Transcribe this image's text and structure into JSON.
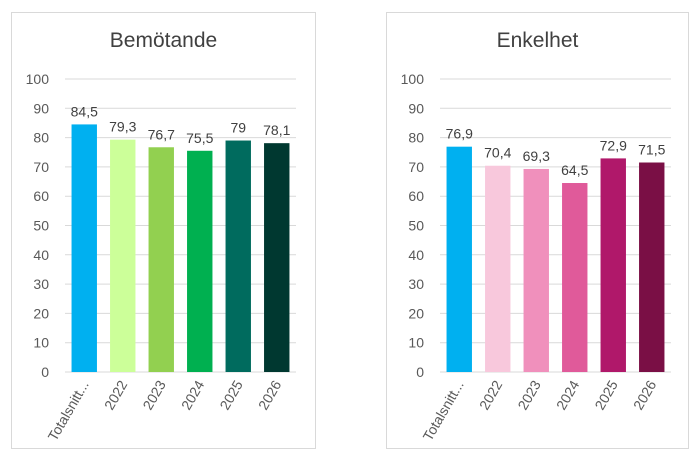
{
  "chart_data": [
    {
      "type": "bar",
      "title": "Bemötande",
      "categories": [
        "Totalsnitt...",
        "2022",
        "2023",
        "2024",
        "2025",
        "2026"
      ],
      "values": [
        84.5,
        79.3,
        76.7,
        75.5,
        79,
        78.1
      ],
      "value_labels": [
        "84,5",
        "79,3",
        "76,7",
        "75,5",
        "79",
        "78,1"
      ],
      "colors": [
        "#00b0f0",
        "#ccff99",
        "#92d050",
        "#00b050",
        "#006b5e",
        "#003830"
      ],
      "ylim": [
        0,
        100
      ],
      "yticks": [
        0,
        10,
        20,
        30,
        40,
        50,
        60,
        70,
        80,
        90,
        100
      ],
      "grid": true,
      "xlabel": "",
      "ylabel": ""
    },
    {
      "type": "bar",
      "title": "Enkelhet",
      "categories": [
        "Totalsnitt...",
        "2022",
        "2023",
        "2024",
        "2025",
        "2026"
      ],
      "values": [
        76.9,
        70.4,
        69.3,
        64.5,
        72.9,
        71.5
      ],
      "value_labels": [
        "76,9",
        "70,4",
        "69,3",
        "64,5",
        "72,9",
        "71,5"
      ],
      "colors": [
        "#00b0f0",
        "#f8c8dc",
        "#f090bc",
        "#e05a9a",
        "#b0186a",
        "#7a0f45"
      ],
      "ylim": [
        0,
        100
      ],
      "yticks": [
        0,
        10,
        20,
        30,
        40,
        50,
        60,
        70,
        80,
        90,
        100
      ],
      "grid": true,
      "xlabel": "",
      "ylabel": ""
    }
  ]
}
